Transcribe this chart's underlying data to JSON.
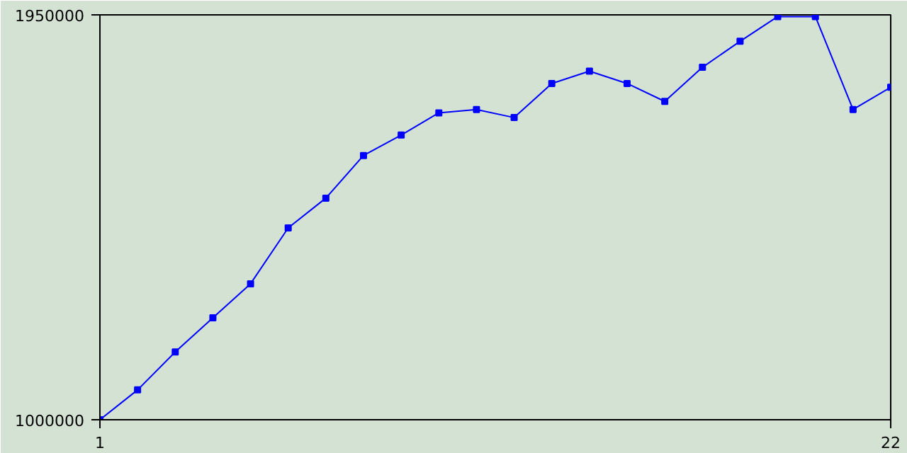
{
  "chart_data": {
    "type": "line",
    "x": [
      1,
      2,
      3,
      4,
      5,
      6,
      7,
      8,
      9,
      10,
      11,
      12,
      13,
      14,
      15,
      16,
      17,
      18,
      19,
      20,
      21,
      22
    ],
    "series": [
      {
        "color": "#0000ff",
        "values": [
          1000000,
          1070000,
          1159000,
          1239000,
          1319000,
          1450000,
          1520000,
          1620000,
          1668000,
          1720000,
          1728000,
          1709000,
          1789000,
          1818000,
          1789000,
          1747000,
          1827000,
          1888000,
          1946000,
          1946000,
          1728000,
          1780000
        ]
      }
    ],
    "xlim": [
      1,
      22
    ],
    "xticks": [
      1,
      22
    ],
    "ylim": [
      1000000,
      1950000
    ],
    "yticks": [
      1000000,
      1950000
    ],
    "marker": "square",
    "line_style": "solid"
  }
}
